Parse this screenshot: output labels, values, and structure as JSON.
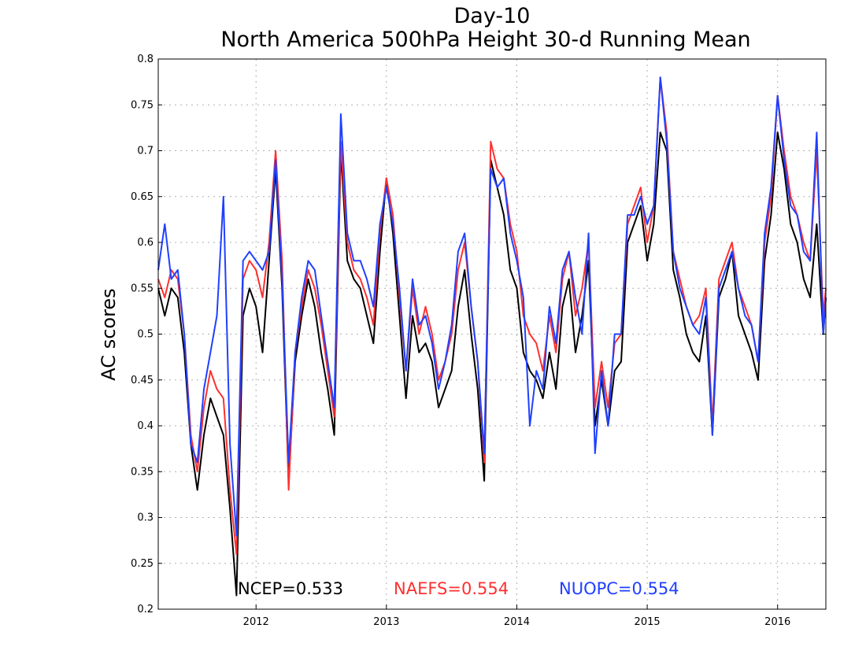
{
  "chart_data": {
    "type": "line",
    "title": "Day-10",
    "subtitle": "North America 500hPa Height 30-d Running Mean",
    "xlabel": "",
    "ylabel": "AC scores",
    "xlim": [
      2011.25,
      2016.37
    ],
    "ylim": [
      0.2,
      0.8
    ],
    "yticks": [
      0.2,
      0.25,
      0.3,
      0.35,
      0.4,
      0.45,
      0.5,
      0.55,
      0.6,
      0.65,
      0.7,
      0.75,
      0.8
    ],
    "ytick_labels": [
      "0.2",
      "0.25",
      "0.3",
      "0.35",
      "0.4",
      "0.45",
      "0.5",
      "0.55",
      "0.6",
      "0.65",
      "0.7",
      "0.75",
      "0.8"
    ],
    "xticks": [
      2012,
      2013,
      2014,
      2015,
      2016
    ],
    "xtick_labels": [
      "2012",
      "2013",
      "2014",
      "2015",
      "2016"
    ],
    "grid": true,
    "legend_placement": "bottom",
    "series": [
      {
        "name": "NCEP",
        "legend": "NCEP=0.533",
        "color": "#000000",
        "x": [
          2011.25,
          2011.3,
          2011.35,
          2011.4,
          2011.45,
          2011.5,
          2011.55,
          2011.6,
          2011.65,
          2011.7,
          2011.75,
          2011.8,
          2011.85,
          2011.9,
          2011.95,
          2012.0,
          2012.05,
          2012.1,
          2012.15,
          2012.2,
          2012.25,
          2012.3,
          2012.35,
          2012.4,
          2012.45,
          2012.5,
          2012.55,
          2012.6,
          2012.65,
          2012.7,
          2012.75,
          2012.8,
          2012.85,
          2012.9,
          2012.95,
          2013.0,
          2013.05,
          2013.1,
          2013.15,
          2013.2,
          2013.25,
          2013.3,
          2013.35,
          2013.4,
          2013.45,
          2013.5,
          2013.55,
          2013.6,
          2013.65,
          2013.7,
          2013.75,
          2013.8,
          2013.85,
          2013.9,
          2013.95,
          2014.0,
          2014.05,
          2014.1,
          2014.15,
          2014.2,
          2014.25,
          2014.3,
          2014.35,
          2014.4,
          2014.45,
          2014.5,
          2014.55,
          2014.6,
          2014.65,
          2014.7,
          2014.75,
          2014.8,
          2014.85,
          2014.9,
          2014.95,
          2015.0,
          2015.05,
          2015.1,
          2015.15,
          2015.2,
          2015.25,
          2015.3,
          2015.35,
          2015.4,
          2015.45,
          2015.5,
          2015.55,
          2015.6,
          2015.65,
          2015.7,
          2015.75,
          2015.8,
          2015.85,
          2015.9,
          2015.95,
          2016.0,
          2016.05,
          2016.1,
          2016.15,
          2016.2,
          2016.25,
          2016.3,
          2016.35,
          2016.37
        ],
        "y": [
          0.55,
          0.52,
          0.55,
          0.54,
          0.48,
          0.38,
          0.33,
          0.39,
          0.43,
          0.41,
          0.39,
          0.31,
          0.215,
          0.52,
          0.55,
          0.53,
          0.48,
          0.58,
          0.68,
          0.55,
          0.34,
          0.47,
          0.52,
          0.56,
          0.53,
          0.48,
          0.44,
          0.39,
          0.7,
          0.58,
          0.56,
          0.55,
          0.52,
          0.49,
          0.59,
          0.67,
          0.61,
          0.52,
          0.43,
          0.52,
          0.48,
          0.49,
          0.47,
          0.42,
          0.44,
          0.46,
          0.53,
          0.57,
          0.5,
          0.44,
          0.34,
          0.69,
          0.66,
          0.63,
          0.57,
          0.55,
          0.48,
          0.46,
          0.45,
          0.43,
          0.48,
          0.44,
          0.53,
          0.56,
          0.48,
          0.52,
          0.58,
          0.4,
          0.45,
          0.4,
          0.46,
          0.47,
          0.6,
          0.62,
          0.64,
          0.58,
          0.62,
          0.72,
          0.7,
          0.57,
          0.54,
          0.5,
          0.48,
          0.47,
          0.52,
          0.39,
          0.54,
          0.56,
          0.59,
          0.52,
          0.5,
          0.48,
          0.45,
          0.58,
          0.63,
          0.72,
          0.68,
          0.62,
          0.6,
          0.56,
          0.54,
          0.62,
          0.5,
          0.54
        ]
      },
      {
        "name": "NAEFS",
        "legend": "NAEFS=0.554",
        "color": "#ff3030",
        "x": [
          2011.25,
          2011.3,
          2011.35,
          2011.4,
          2011.45,
          2011.5,
          2011.55,
          2011.6,
          2011.65,
          2011.7,
          2011.75,
          2011.8,
          2011.85,
          2011.9,
          2011.95,
          2012.0,
          2012.05,
          2012.1,
          2012.15,
          2012.2,
          2012.25,
          2012.3,
          2012.35,
          2012.4,
          2012.45,
          2012.5,
          2012.55,
          2012.6,
          2012.65,
          2012.7,
          2012.75,
          2012.8,
          2012.85,
          2012.9,
          2012.95,
          2013.0,
          2013.05,
          2013.1,
          2013.15,
          2013.2,
          2013.25,
          2013.3,
          2013.35,
          2013.4,
          2013.45,
          2013.5,
          2013.55,
          2013.6,
          2013.65,
          2013.7,
          2013.75,
          2013.8,
          2013.85,
          2013.9,
          2013.95,
          2014.0,
          2014.05,
          2014.1,
          2014.15,
          2014.2,
          2014.25,
          2014.3,
          2014.35,
          2014.4,
          2014.45,
          2014.5,
          2014.55,
          2014.6,
          2014.65,
          2014.7,
          2014.75,
          2014.8,
          2014.85,
          2014.9,
          2014.95,
          2015.0,
          2015.05,
          2015.1,
          2015.15,
          2015.2,
          2015.25,
          2015.3,
          2015.35,
          2015.4,
          2015.45,
          2015.5,
          2015.55,
          2015.6,
          2015.65,
          2015.7,
          2015.75,
          2015.8,
          2015.85,
          2015.9,
          2015.95,
          2016.0,
          2016.05,
          2016.1,
          2016.15,
          2016.2,
          2016.25,
          2016.3,
          2016.35,
          2016.37
        ],
        "y": [
          0.56,
          0.54,
          0.57,
          0.56,
          0.5,
          0.39,
          0.35,
          0.42,
          0.46,
          0.44,
          0.43,
          0.33,
          0.26,
          0.56,
          0.58,
          0.57,
          0.54,
          0.6,
          0.7,
          0.58,
          0.33,
          0.48,
          0.53,
          0.57,
          0.55,
          0.51,
          0.46,
          0.41,
          0.71,
          0.6,
          0.57,
          0.56,
          0.54,
          0.51,
          0.61,
          0.67,
          0.63,
          0.54,
          0.46,
          0.55,
          0.5,
          0.53,
          0.5,
          0.45,
          0.47,
          0.5,
          0.57,
          0.6,
          0.53,
          0.47,
          0.36,
          0.71,
          0.68,
          0.67,
          0.62,
          0.59,
          0.52,
          0.5,
          0.49,
          0.46,
          0.52,
          0.48,
          0.56,
          0.59,
          0.52,
          0.55,
          0.6,
          0.42,
          0.47,
          0.42,
          0.49,
          0.5,
          0.62,
          0.64,
          0.66,
          0.6,
          0.64,
          0.78,
          0.72,
          0.59,
          0.56,
          0.53,
          0.51,
          0.52,
          0.55,
          0.4,
          0.56,
          0.58,
          0.6,
          0.55,
          0.53,
          0.51,
          0.47,
          0.6,
          0.65,
          0.76,
          0.7,
          0.65,
          0.63,
          0.6,
          0.58,
          0.7,
          0.52,
          0.55
        ]
      },
      {
        "name": "NUOPC",
        "legend": "NUOPC=0.554",
        "color": "#2040ff",
        "x": [
          2011.25,
          2011.3,
          2011.35,
          2011.4,
          2011.45,
          2011.5,
          2011.55,
          2011.6,
          2011.65,
          2011.7,
          2011.75,
          2011.8,
          2011.85,
          2011.9,
          2011.95,
          2012.0,
          2012.05,
          2012.1,
          2012.15,
          2012.2,
          2012.25,
          2012.3,
          2012.35,
          2012.4,
          2012.45,
          2012.5,
          2012.55,
          2012.6,
          2012.65,
          2012.7,
          2012.75,
          2012.8,
          2012.85,
          2012.9,
          2012.95,
          2013.0,
          2013.05,
          2013.1,
          2013.15,
          2013.2,
          2013.25,
          2013.3,
          2013.35,
          2013.4,
          2013.45,
          2013.5,
          2013.55,
          2013.6,
          2013.65,
          2013.7,
          2013.75,
          2013.8,
          2013.85,
          2013.9,
          2013.95,
          2014.0,
          2014.05,
          2014.1,
          2014.15,
          2014.2,
          2014.25,
          2014.3,
          2014.35,
          2014.4,
          2014.45,
          2014.5,
          2014.55,
          2014.6,
          2014.65,
          2014.7,
          2014.75,
          2014.8,
          2014.85,
          2014.9,
          2014.95,
          2015.0,
          2015.05,
          2015.1,
          2015.15,
          2015.2,
          2015.25,
          2015.3,
          2015.35,
          2015.4,
          2015.45,
          2015.5,
          2015.55,
          2015.6,
          2015.65,
          2015.7,
          2015.75,
          2015.8,
          2015.85,
          2015.9,
          2015.95,
          2016.0,
          2016.05,
          2016.1,
          2016.15,
          2016.2,
          2016.25,
          2016.3,
          2016.35,
          2016.37
        ],
        "y": [
          0.57,
          0.62,
          0.56,
          0.57,
          0.5,
          0.38,
          0.36,
          0.44,
          0.48,
          0.52,
          0.65,
          0.38,
          0.28,
          0.58,
          0.59,
          0.58,
          0.57,
          0.59,
          0.69,
          0.56,
          0.36,
          0.48,
          0.54,
          0.58,
          0.57,
          0.52,
          0.47,
          0.42,
          0.74,
          0.61,
          0.58,
          0.58,
          0.56,
          0.53,
          0.62,
          0.66,
          0.62,
          0.55,
          0.46,
          0.56,
          0.51,
          0.52,
          0.49,
          0.44,
          0.47,
          0.51,
          0.59,
          0.61,
          0.53,
          0.47,
          0.37,
          0.68,
          0.66,
          0.67,
          0.61,
          0.58,
          0.54,
          0.4,
          0.46,
          0.44,
          0.53,
          0.49,
          0.57,
          0.59,
          0.54,
          0.5,
          0.61,
          0.37,
          0.46,
          0.4,
          0.5,
          0.5,
          0.63,
          0.63,
          0.65,
          0.62,
          0.64,
          0.78,
          0.71,
          0.59,
          0.55,
          0.53,
          0.51,
          0.5,
          0.54,
          0.39,
          0.55,
          0.57,
          0.59,
          0.55,
          0.52,
          0.51,
          0.47,
          0.61,
          0.66,
          0.76,
          0.69,
          0.64,
          0.63,
          0.59,
          0.58,
          0.72,
          0.5,
          0.54
        ]
      }
    ]
  }
}
